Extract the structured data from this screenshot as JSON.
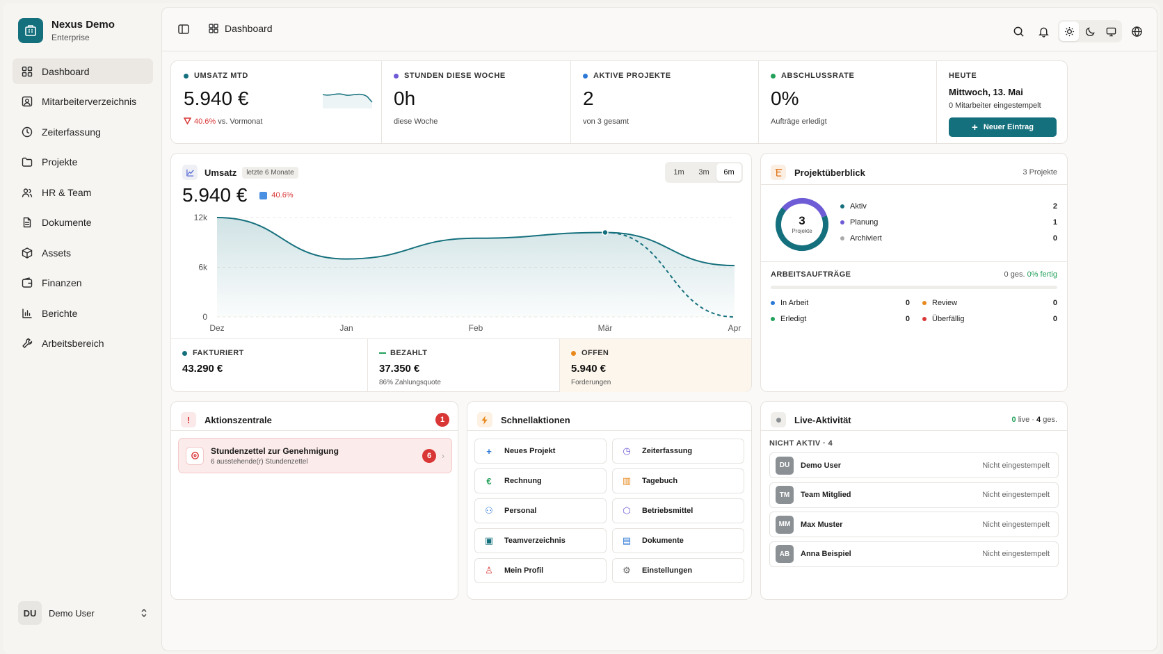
{
  "brand": {
    "name": "Nexus Demo",
    "plan": "Enterprise"
  },
  "sidebar": {
    "items": [
      {
        "label": "Dashboard",
        "icon": "grid-icon",
        "active": true
      },
      {
        "label": "Mitarbeiterverzeichnis",
        "icon": "contact-card-icon"
      },
      {
        "label": "Zeiterfassung",
        "icon": "clock-icon"
      },
      {
        "label": "Projekte",
        "icon": "folder-icon"
      },
      {
        "label": "HR & Team",
        "icon": "users-icon"
      },
      {
        "label": "Dokumente",
        "icon": "document-icon"
      },
      {
        "label": "Assets",
        "icon": "box-icon"
      },
      {
        "label": "Finanzen",
        "icon": "wallet-icon"
      },
      {
        "label": "Berichte",
        "icon": "bar-chart-icon"
      },
      {
        "label": "Arbeitsbereich",
        "icon": "wrench-icon"
      }
    ],
    "user": {
      "initials": "DU",
      "name": "Demo User"
    }
  },
  "topbar": {
    "breadcrumb": "Dashboard"
  },
  "kpis": {
    "umsatz": {
      "label": "UMSATZ MTD",
      "value": "5.940 €",
      "delta": "40.6%",
      "delta_suffix": "vs. Vormonat",
      "dot": "#15707d"
    },
    "stunden": {
      "label": "STUNDEN DIESE WOCHE",
      "value": "0h",
      "sub": "diese Woche",
      "dot": "#6e5bd6"
    },
    "projekte": {
      "label": "AKTIVE PROJEKTE",
      "value": "2",
      "sub": "von 3 gesamt",
      "dot": "#2b78d6"
    },
    "abschluss": {
      "label": "ABSCHLUSSRATE",
      "value": "0%",
      "sub": "Aufträge erledigt",
      "dot": "#22a05a"
    },
    "heute": {
      "label": "HEUTE",
      "date": "Mittwoch, 13. Mai",
      "sub": "0 Mitarbeiter eingestempelt",
      "button": "Neuer Eintrag"
    }
  },
  "revenue": {
    "title": "Umsatz",
    "tag": "letzte 6 Monate",
    "value": "5.940 €",
    "delta": "40.6%",
    "ranges": [
      "1m",
      "3m",
      "6m"
    ],
    "selected_range": "6m",
    "summary": [
      {
        "label": "FAKTURIERT",
        "value": "43.290 €",
        "sub": "",
        "color": "#15707d"
      },
      {
        "label": "BEZAHLT",
        "value": "37.350 €",
        "sub": "86% Zahlungsquote",
        "color": "#22a05a"
      },
      {
        "label": "OFFEN",
        "value": "5.940 €",
        "sub": "Forderungen",
        "color": "#e8891d"
      }
    ]
  },
  "chart_data": {
    "type": "area",
    "x": [
      "Dez",
      "Jan",
      "Feb",
      "Mär",
      "Apr"
    ],
    "y_ticks": [
      "12k",
      "6k",
      "0"
    ],
    "ylim": [
      0,
      12000
    ],
    "series": [
      {
        "values": [
          12000,
          7000,
          9500,
          10200,
          6200
        ]
      },
      {
        "values": [
          null,
          null,
          null,
          10200,
          0
        ],
        "style": "dashed"
      }
    ],
    "grid": true
  },
  "projects": {
    "title": "Projektüberblick",
    "count_label": "3 Projekte",
    "total": "3",
    "total_label": "Projekte",
    "legend": [
      {
        "label": "Aktiv",
        "value": "2",
        "color": "#15707d",
        "share": 0.667
      },
      {
        "label": "Planung",
        "value": "1",
        "color": "#6e5bd6",
        "share": 0.333
      },
      {
        "label": "Archiviert",
        "value": "0",
        "color": "#aaaaaa",
        "share": 0
      }
    ],
    "orders_title": "ARBEITSAUFTRÄGE",
    "orders_summary": "0 ges.",
    "orders_done": "0% fertig",
    "orders": [
      {
        "label": "In Arbeit",
        "value": "0",
        "color": "#2b78d6"
      },
      {
        "label": "Review",
        "value": "0",
        "color": "#e8891d"
      },
      {
        "label": "Erledigt",
        "value": "0",
        "color": "#22a05a"
      },
      {
        "label": "Überfällig",
        "value": "0",
        "color": "#d93636"
      }
    ]
  },
  "actions": {
    "title": "Aktionszentrale",
    "count": "1",
    "item_title": "Stundenzettel zur Genehmigung",
    "item_sub": "6 ausstehende(r) Stundenzettel",
    "item_count": "6"
  },
  "quick": {
    "title": "Schnellaktionen",
    "items": [
      {
        "label": "Neues Projekt",
        "glyph": "+",
        "color": "#2b78d6"
      },
      {
        "label": "Zeiterfassung",
        "glyph": "◷",
        "color": "#6e5bd6"
      },
      {
        "label": "Rechnung",
        "glyph": "€",
        "color": "#22a05a"
      },
      {
        "label": "Tagebuch",
        "glyph": "▥",
        "color": "#e8891d"
      },
      {
        "label": "Personal",
        "glyph": "⚇",
        "color": "#2b78d6"
      },
      {
        "label": "Betriebsmittel",
        "glyph": "⬡",
        "color": "#6e5bd6"
      },
      {
        "label": "Teamverzeichnis",
        "glyph": "▣",
        "color": "#15707d"
      },
      {
        "label": "Dokumente",
        "glyph": "▤",
        "color": "#2b78d6"
      },
      {
        "label": "Mein Profil",
        "glyph": "♙",
        "color": "#d93636"
      },
      {
        "label": "Einstellungen",
        "glyph": "⚙",
        "color": "#666666"
      }
    ]
  },
  "live": {
    "title": "Live-Aktivität",
    "live_count": "0",
    "live_word": "live",
    "total": "4",
    "total_word": "ges.",
    "section": "NICHT AKTIV · 4",
    "users": [
      {
        "initials": "DU",
        "name": "Demo User",
        "status": "Nicht eingestempelt"
      },
      {
        "initials": "TM",
        "name": "Team Mitglied",
        "status": "Nicht eingestempelt"
      },
      {
        "initials": "MM",
        "name": "Max Muster",
        "status": "Nicht eingestempelt"
      },
      {
        "initials": "AB",
        "name": "Anna Beispiel",
        "status": "Nicht eingestempelt"
      }
    ]
  }
}
